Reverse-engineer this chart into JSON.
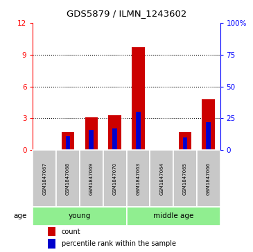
{
  "title": "GDS5879 / ILMN_1243602",
  "samples": [
    "GSM1847067",
    "GSM1847068",
    "GSM1847069",
    "GSM1847070",
    "GSM1847063",
    "GSM1847064",
    "GSM1847065",
    "GSM1847066"
  ],
  "counts": [
    0.0,
    1.7,
    3.1,
    3.3,
    9.7,
    0.0,
    1.7,
    4.8
  ],
  "percentile_ranks_pct": [
    0,
    11,
    16,
    17,
    30,
    0,
    10,
    22
  ],
  "groups": [
    {
      "label": "young",
      "indices": [
        0,
        1,
        2,
        3
      ]
    },
    {
      "label": "middle age",
      "indices": [
        4,
        5,
        6,
        7
      ]
    }
  ],
  "ylim_left": [
    0,
    12
  ],
  "ylim_right": [
    0,
    100
  ],
  "yticks_left": [
    0,
    3,
    6,
    9,
    12
  ],
  "ytick_labels_left": [
    "0",
    "3",
    "6",
    "9",
    "12"
  ],
  "yticks_right": [
    0,
    25,
    50,
    75,
    100
  ],
  "ytick_labels_right": [
    "0",
    "25",
    "50",
    "75",
    "100%"
  ],
  "bar_color": "#CC0000",
  "percentile_color": "#0000CC",
  "bar_width": 0.55,
  "blue_bar_width": 0.2,
  "grid_yticks": [
    3,
    6,
    9
  ],
  "sample_row_color": "#C8C8C8",
  "group_color": "#90EE90",
  "age_label": "age",
  "legend_count_label": "count",
  "legend_percentile_label": "percentile rank within the sample"
}
